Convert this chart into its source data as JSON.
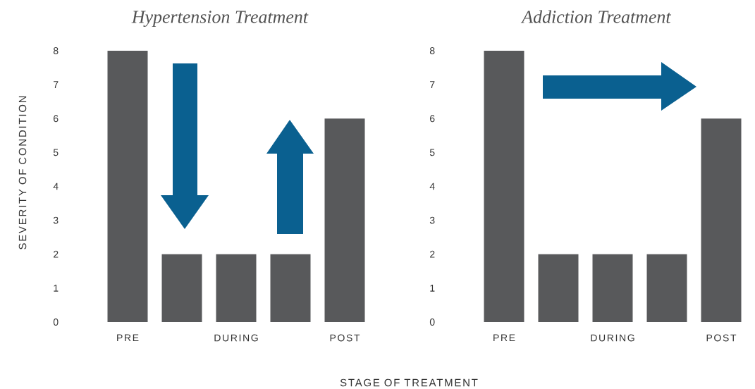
{
  "chart_data": [
    {
      "type": "bar",
      "title": "Hypertension Treatment",
      "ylabel": "SEVERITY OF CONDITION",
      "xlabel": "STAGE OF TREATMENT",
      "categories": [
        "PRE",
        null,
        "DURING",
        null,
        "POST"
      ],
      "values": [
        8,
        2,
        2,
        2,
        6
      ],
      "color": "#58595b",
      "ylim": [
        0,
        8
      ],
      "yticks": [
        0,
        1,
        2,
        3,
        4,
        5,
        6,
        7,
        8
      ]
    },
    {
      "type": "bar",
      "title": "Addiction Treatment",
      "categories": [
        "PRE",
        null,
        "DURING",
        null,
        "POST"
      ],
      "values": [
        8,
        2,
        2,
        2,
        6
      ],
      "color": "#58595b",
      "ylim": [
        0,
        8
      ],
      "yticks": [
        0,
        1,
        2,
        3,
        4,
        5,
        6,
        7,
        8
      ]
    }
  ]
}
